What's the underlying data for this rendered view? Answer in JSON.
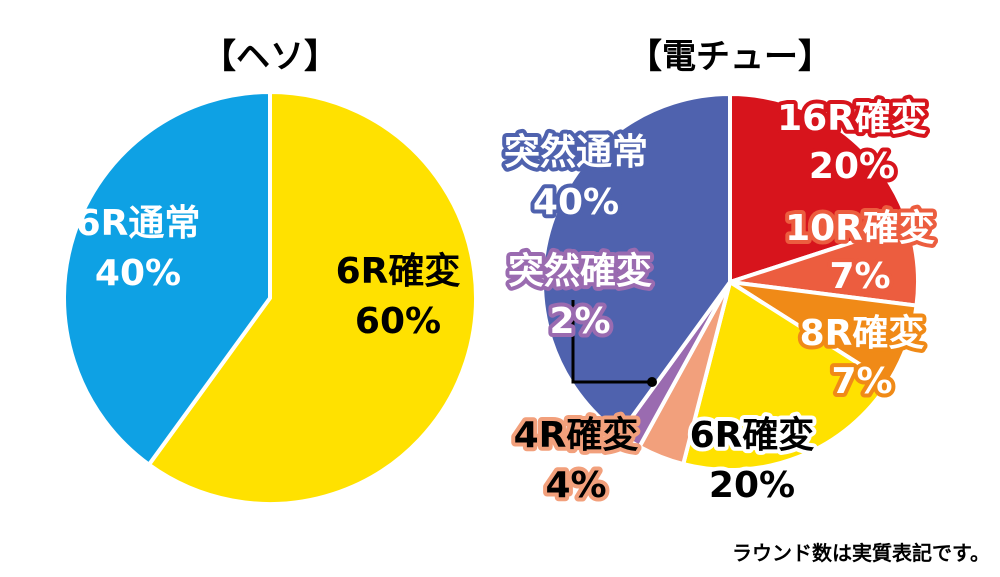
{
  "chart_data": [
    {
      "type": "pie",
      "title": "【ヘソ】",
      "slices": [
        {
          "name": "6R確変",
          "value": 60,
          "value_label": "60%",
          "color": "#ffe100",
          "text_color": "#000000"
        },
        {
          "name": "6R通常",
          "value": 40,
          "value_label": "40%",
          "color": "#0ea1e4",
          "text_color": "#ffffff"
        }
      ]
    },
    {
      "type": "pie",
      "title": "【電チュー】",
      "slices": [
        {
          "name": "16R確変",
          "value": 20,
          "value_label": "20%",
          "color": "#d7141c",
          "text_color": "#ffffff"
        },
        {
          "name": "10R確変",
          "value": 7,
          "value_label": "7%",
          "color": "#ec5d3f",
          "text_color": "#ffffff"
        },
        {
          "name": "8R確変",
          "value": 7,
          "value_label": "7%",
          "color": "#f08a17",
          "text_color": "#ffffff"
        },
        {
          "name": "6R確変",
          "value": 20,
          "value_label": "20%",
          "color": "#ffe100",
          "text_color": "#000000"
        },
        {
          "name": "4R確変",
          "value": 4,
          "value_label": "4%",
          "color": "#f2a07c",
          "text_color": "#000000"
        },
        {
          "name": "突然確変",
          "value": 2,
          "value_label": "2%",
          "color": "#9a6bb0",
          "text_color": "#ffffff"
        },
        {
          "name": "突然通常",
          "value": 40,
          "value_label": "40%",
          "color": "#4f62ae",
          "text_color": "#ffffff"
        }
      ]
    }
  ],
  "footnote": "ラウンド数は実質表記です。"
}
